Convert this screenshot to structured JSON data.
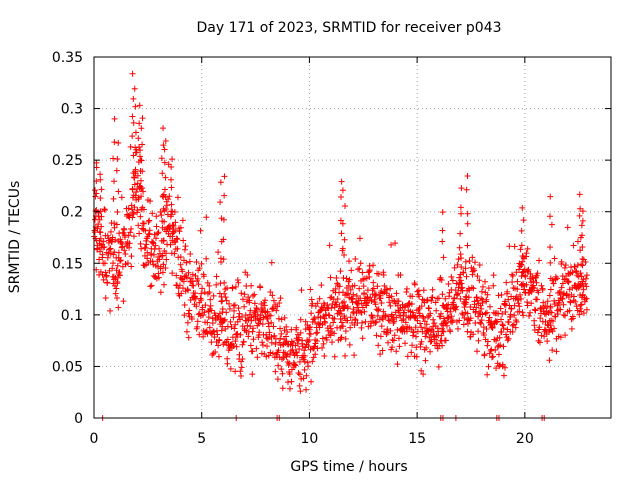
{
  "chart_data": {
    "type": "scatter",
    "title": "Day 171 of 2023, SRMTID for receiver p043",
    "xlabel": "GPS time / hours",
    "ylabel": "SRMTID / TECUs",
    "xlim": [
      0,
      24
    ],
    "ylim": [
      0,
      0.35
    ],
    "x_ticks": [
      0,
      5,
      10,
      15,
      20
    ],
    "x_tick_labels": [
      "0",
      "5",
      "10",
      "15",
      "20"
    ],
    "y_ticks": [
      0,
      0.05,
      0.1,
      0.15,
      0.2,
      0.25,
      0.3,
      0.35
    ],
    "y_tick_labels": [
      "0",
      "0.05",
      "0.1",
      "0.15",
      "0.2",
      "0.25",
      "0.3",
      "0.35"
    ],
    "grid": true,
    "marker": "+",
    "color": "#ff0000",
    "trend": [
      [
        0.0,
        0.19
      ],
      [
        0.5,
        0.16
      ],
      [
        1.0,
        0.15
      ],
      [
        1.5,
        0.17
      ],
      [
        2.0,
        0.22
      ],
      [
        2.5,
        0.17
      ],
      [
        3.0,
        0.16
      ],
      [
        3.5,
        0.19
      ],
      [
        4.0,
        0.14
      ],
      [
        4.5,
        0.12
      ],
      [
        5.0,
        0.11
      ],
      [
        5.5,
        0.085
      ],
      [
        6.0,
        0.09
      ],
      [
        6.5,
        0.08
      ],
      [
        7.0,
        0.09
      ],
      [
        7.5,
        0.095
      ],
      [
        8.0,
        0.09
      ],
      [
        8.5,
        0.075
      ],
      [
        9.0,
        0.06
      ],
      [
        9.5,
        0.065
      ],
      [
        10.0,
        0.075
      ],
      [
        10.5,
        0.09
      ],
      [
        11.0,
        0.1
      ],
      [
        11.5,
        0.105
      ],
      [
        12.0,
        0.11
      ],
      [
        12.5,
        0.12
      ],
      [
        13.0,
        0.11
      ],
      [
        13.5,
        0.11
      ],
      [
        14.0,
        0.09
      ],
      [
        14.5,
        0.095
      ],
      [
        15.0,
        0.095
      ],
      [
        15.5,
        0.09
      ],
      [
        16.0,
        0.085
      ],
      [
        16.5,
        0.1
      ],
      [
        17.0,
        0.13
      ],
      [
        17.5,
        0.11
      ],
      [
        18.0,
        0.1
      ],
      [
        18.5,
        0.09
      ],
      [
        19.0,
        0.085
      ],
      [
        19.5,
        0.12
      ],
      [
        20.0,
        0.13
      ],
      [
        20.5,
        0.11
      ],
      [
        21.0,
        0.1
      ],
      [
        21.5,
        0.115
      ],
      [
        22.0,
        0.12
      ],
      [
        22.5,
        0.13
      ],
      [
        22.9,
        0.12
      ]
    ],
    "spread": 0.028,
    "peaks": [
      {
        "x": 0.1,
        "y": 0.25
      },
      {
        "x": 0.3,
        "y": 0.24
      },
      {
        "x": 0.9,
        "y": 0.29
      },
      {
        "x": 1.1,
        "y": 0.27
      },
      {
        "x": 1.8,
        "y": 0.33
      },
      {
        "x": 1.9,
        "y": 0.32
      },
      {
        "x": 2.1,
        "y": 0.3
      },
      {
        "x": 2.2,
        "y": 0.29
      },
      {
        "x": 3.2,
        "y": 0.28
      },
      {
        "x": 3.3,
        "y": 0.27
      },
      {
        "x": 3.6,
        "y": 0.25
      },
      {
        "x": 5.9,
        "y": 0.23
      },
      {
        "x": 6.0,
        "y": 0.235
      },
      {
        "x": 11.5,
        "y": 0.23
      },
      {
        "x": 11.6,
        "y": 0.22
      },
      {
        "x": 16.2,
        "y": 0.2
      },
      {
        "x": 17.0,
        "y": 0.22
      },
      {
        "x": 17.3,
        "y": 0.235
      },
      {
        "x": 19.9,
        "y": 0.2
      },
      {
        "x": 21.2,
        "y": 0.215
      },
      {
        "x": 22.6,
        "y": 0.215
      },
      {
        "x": 22.7,
        "y": 0.2
      }
    ],
    "zero_points": [
      0.4,
      6.6,
      8.5,
      8.6,
      16.1,
      16.2,
      16.8,
      18.7,
      18.8,
      20.8,
      20.9
    ]
  }
}
